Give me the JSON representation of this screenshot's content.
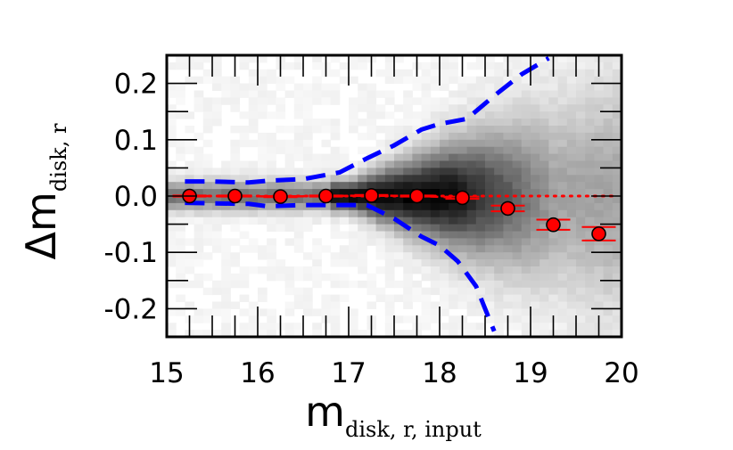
{
  "chart_data": {
    "type": "scatter",
    "title": "",
    "xlabel": {
      "main": "m",
      "sub": "disk, r, input"
    },
    "ylabel": {
      "main": "Δm",
      "sub": "disk, r"
    },
    "xlim": [
      15,
      20
    ],
    "ylim": [
      -0.25,
      0.25
    ],
    "xticks": [
      "15",
      "16",
      "17",
      "18",
      "19",
      "20"
    ],
    "yticks": [
      "0.2",
      "0.1",
      "0.0",
      "-0.1",
      "-0.2"
    ],
    "grid": false,
    "legend": "none",
    "series": [
      {
        "kind": "points-with-errorbars",
        "color": "#ff0000",
        "x": [
          15.25,
          15.75,
          16.25,
          16.75,
          17.25,
          17.75,
          18.25,
          18.75,
          19.25,
          19.75
        ],
        "y": [
          0.0,
          0.0,
          -0.001,
          0.0,
          0.001,
          0.0,
          -0.003,
          -0.022,
          -0.051,
          -0.067
        ],
        "yerr": [
          0.001,
          0.001,
          0.001,
          0.001,
          0.001,
          0.001,
          0.002,
          0.005,
          0.009,
          0.012
        ]
      },
      {
        "kind": "upper-dashed",
        "color": "#0000ff",
        "x": [
          15.2,
          15.5,
          15.9,
          16.1,
          16.5,
          16.9,
          17.2,
          17.5,
          17.8,
          18.0,
          18.3,
          18.6,
          18.9,
          19.2
        ],
        "y": [
          0.026,
          0.026,
          0.024,
          0.027,
          0.03,
          0.042,
          0.067,
          0.09,
          0.118,
          0.128,
          0.137,
          0.178,
          0.216,
          0.245
        ]
      },
      {
        "kind": "lower-dashed",
        "color": "#0000ff",
        "x": [
          15.2,
          15.5,
          15.9,
          16.1,
          16.5,
          16.9,
          17.2,
          17.5,
          17.8,
          18.0,
          18.2,
          18.4,
          18.5,
          18.6
        ],
        "y": [
          -0.012,
          -0.013,
          -0.014,
          -0.018,
          -0.016,
          -0.016,
          -0.016,
          -0.04,
          -0.072,
          -0.088,
          -0.116,
          -0.16,
          -0.2,
          -0.24
        ]
      },
      {
        "kind": "zero-reference-dotted",
        "color": "#ff0000",
        "x": [
          15.2,
          19.9
        ],
        "y": [
          0.0,
          0.0
        ]
      }
    ],
    "density_background": "grey 2D histogram concentrated near y=0 between x=17 and x=18.1"
  }
}
